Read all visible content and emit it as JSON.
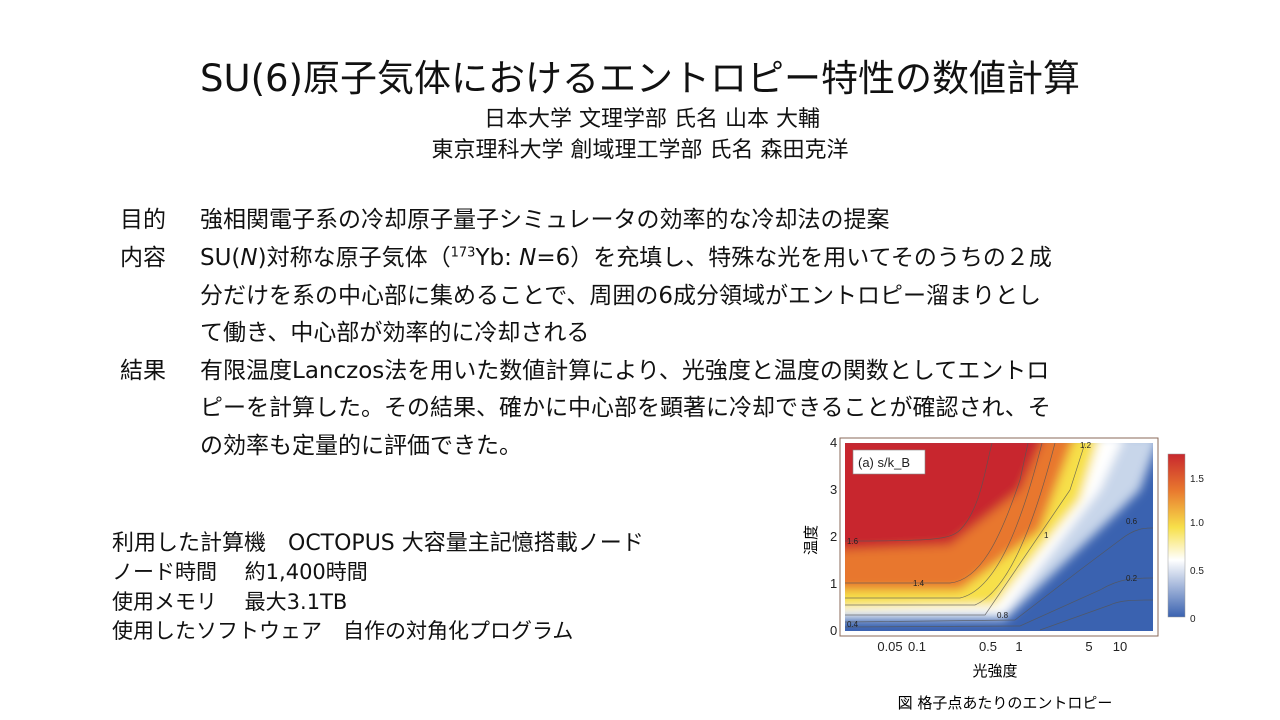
{
  "title": "SU(6)原子気体におけるエントロピー特性の数値計算",
  "authors": [
    "日本大学 文理学部 氏名 山本 大輔",
    "東京理科大学 創域理工学部 氏名 森田克洋"
  ],
  "sections": [
    {
      "label": "目的",
      "lines": [
        "強相関電子系の冷却原子量子シミュレータの効率的な冷却法の提案"
      ]
    },
    {
      "label": "内容",
      "line1_a": "SU(",
      "line1_N": "N",
      "line1_b": ")対称な原子気体（",
      "line1_sup": "173",
      "line1_c": "Yb: ",
      "line1_N2": "N",
      "line1_d": "=6）を充填し、特殊な光を用いてそのうちの２成",
      "lines": [
        "分だけを系の中心部に集めることで、周囲の6成分領域がエントロピー溜まりとし",
        "て働き、中心部が効率的に冷却される"
      ]
    },
    {
      "label": "結果",
      "lines": [
        "有限温度Lanczos法を用いた数値計算により、光強度と温度の関数としてエントロ",
        "ピーを計算した。その結果、確かに中心部を顕著に冷却できることが確認され、そ",
        "の効率も定量的に評価できた。"
      ]
    }
  ],
  "resources": [
    "利用した計算機　OCTOPUS 大容量主記憶搭載ノード",
    "ノード時間　 約1,400時間",
    "使用メモリ　 最大3.1TB",
    "使用したソフトウェア　自作の対角化プログラム"
  ],
  "chart_data": {
    "type": "heatmap",
    "panel_label": "(a) s/k_B",
    "xlabel": "光強度",
    "ylabel": "温度",
    "x_scale": "log",
    "xlim": [
      0.02,
      20
    ],
    "ylim": [
      0,
      4
    ],
    "x_ticks": [
      "0.05",
      "0.1",
      "0.5",
      "1",
      "5",
      "10"
    ],
    "y_ticks": [
      "0",
      "1",
      "2",
      "3",
      "4"
    ],
    "colorbar": {
      "ticks": [
        "0",
        "0.5",
        "1.0",
        "1.5"
      ],
      "range": [
        0,
        1.75
      ],
      "colors": [
        "#3a62b0",
        "#ffffff",
        "#f7e04a",
        "#e8772e",
        "#c8282e"
      ]
    },
    "contour_labels": [
      "1.6",
      "1.4",
      "1.2",
      "1",
      "0.8",
      "0.6",
      "0.4",
      "0.2"
    ],
    "caption": "図 格子点あたりのエントロピー"
  }
}
